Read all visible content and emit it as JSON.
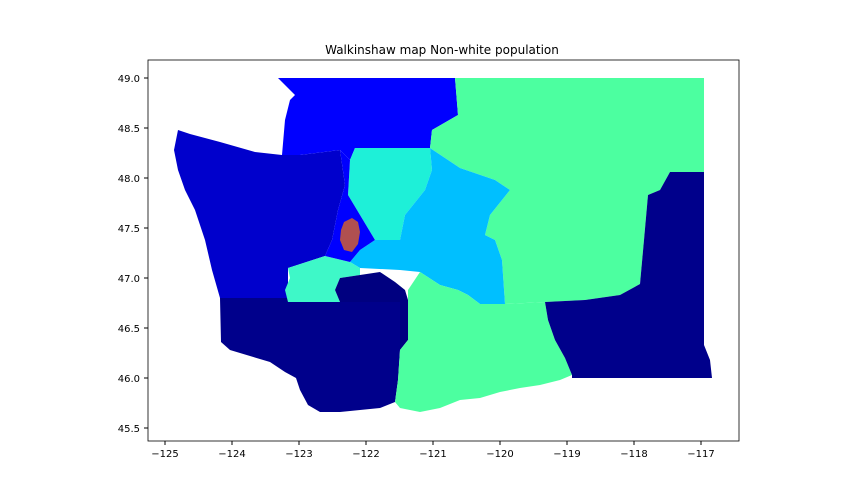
{
  "title": "Walkinshaw map Non-white population",
  "xaxis": {
    "ticks": [
      "−125",
      "−124",
      "−123",
      "−122",
      "−121",
      "−120",
      "−119",
      "−118",
      "−117"
    ]
  },
  "yaxis": {
    "ticks": [
      "49.0",
      "48.5",
      "48.0",
      "47.5",
      "47.0",
      "46.5",
      "46.0",
      "45.5"
    ]
  },
  "chart_data": {
    "type": "choropleth",
    "title": "Walkinshaw map Non-white population",
    "xlim": [
      -125.3,
      -116.5
    ],
    "ylim": [
      45.35,
      49.3
    ],
    "colors": {
      "darkest_navy": "#00008b",
      "dark_navy": "#000080",
      "navy_blue": "#0000b8",
      "blue": "#0000ff",
      "dodger_blue": "#00a2ff",
      "sky_blue": "#00bfff",
      "aqua": "#1ef0d8",
      "sea_green": "#4cffa0",
      "turquoise": "#3ef8b6",
      "seattle_red": "#b05050"
    }
  }
}
